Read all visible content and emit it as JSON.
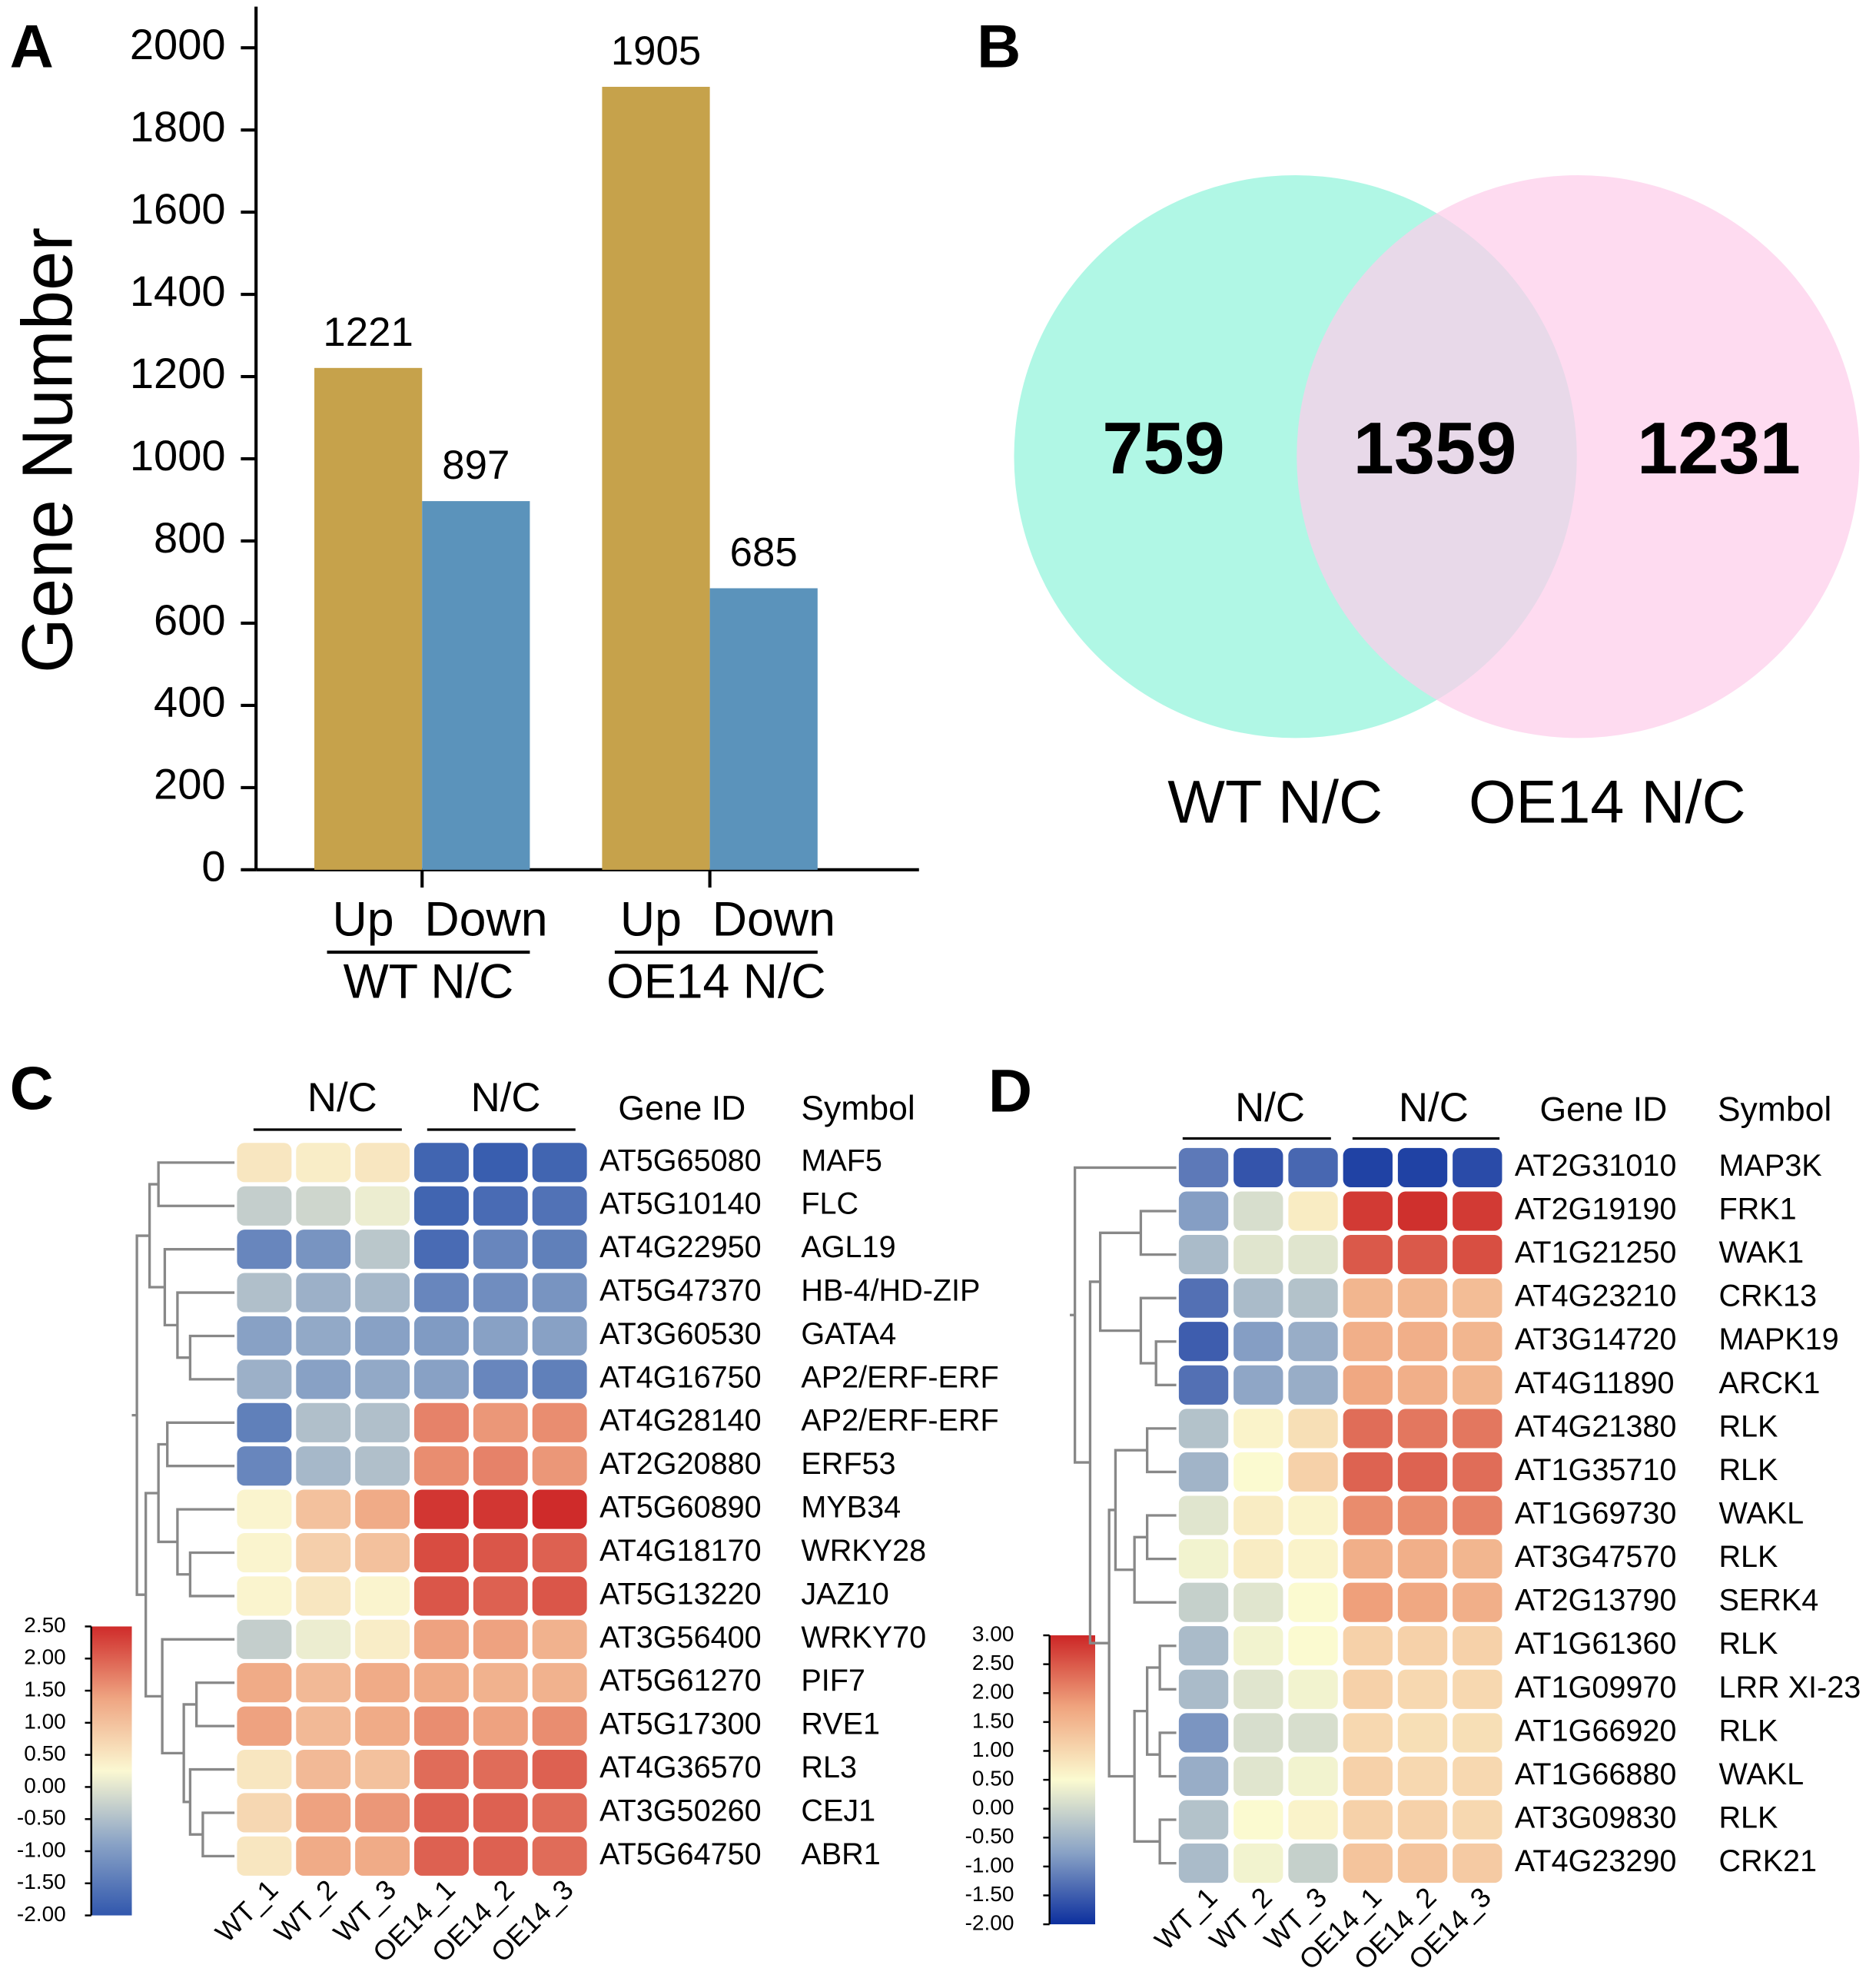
{
  "chart_data": [
    {
      "type": "bar",
      "panel": "A",
      "ylabel": "Gene Number",
      "categories": [
        "WT N/C",
        "OE14 N/C"
      ],
      "series": [
        {
          "name": "Up",
          "color": "#c6a24b",
          "label_color": "#c2714f",
          "values": [
            1221,
            1905
          ]
        },
        {
          "name": "Down",
          "color": "#5b93bb",
          "label_color": "#5b8fbb",
          "values": [
            897,
            685
          ]
        }
      ],
      "ylim": [
        0,
        2100
      ],
      "yticks": [
        0,
        200,
        400,
        600,
        800,
        1000,
        1200,
        1400,
        1600,
        1800,
        2000
      ]
    },
    {
      "type": "venn",
      "panel": "B",
      "sets": [
        "WT N/C",
        "OE14 N/C"
      ],
      "colors": [
        "#b0f7e5",
        "#fdcdea"
      ],
      "values": [
        759,
        1359,
        1231
      ]
    },
    {
      "type": "heatmap",
      "panel": "C",
      "group_labels": [
        "N/C",
        "N/C"
      ],
      "id_header": "Gene ID",
      "symbol_header": "Symbol",
      "columns": [
        "WT_1",
        "WT_2",
        "WT_3",
        "OE14_1",
        "OE14_2",
        "OE14_3"
      ],
      "gene_ids": [
        "AT5G65080",
        "AT5G10140",
        "AT4G22950",
        "AT5G47370",
        "AT3G60530",
        "AT4G16750",
        "AT4G28140",
        "AT2G20880",
        "AT5G60890",
        "AT4G18170",
        "AT5G13220",
        "AT3G56400",
        "AT5G61270",
        "AT5G17300",
        "AT4G36570",
        "AT3G50260",
        "AT5G64750"
      ],
      "symbols": [
        "MAF5",
        "FLC",
        "AGL19",
        "HB-4/HD-ZIP",
        "GATA4",
        "AP2/ERF-ERF",
        "AP2/ERF-ERF",
        "ERF53",
        "MYB34",
        "WRKY28",
        "JAZ10",
        "WRKY70",
        "PIF7",
        "RVE1",
        "RL3",
        "CEJ1",
        "ABR1"
      ],
      "values": [
        [
          0.5,
          0.4,
          0.5,
          -1.8,
          -1.9,
          -1.8
        ],
        [
          -0.3,
          -0.2,
          0.1,
          -1.8,
          -1.7,
          -1.6
        ],
        [
          -1.3,
          -1.1,
          -0.4,
          -1.7,
          -1.3,
          -1.4
        ],
        [
          -0.5,
          -0.7,
          -0.6,
          -1.3,
          -1.2,
          -1.1
        ],
        [
          -0.9,
          -0.8,
          -0.9,
          -1.0,
          -0.9,
          -0.9
        ],
        [
          -0.7,
          -0.9,
          -0.8,
          -0.9,
          -1.3,
          -1.4
        ],
        [
          -1.4,
          -0.5,
          -0.5,
          1.7,
          1.5,
          1.6
        ],
        [
          -1.3,
          -0.6,
          -0.5,
          1.6,
          1.7,
          1.5
        ],
        [
          0.3,
          1.0,
          1.3,
          2.4,
          2.4,
          2.5
        ],
        [
          0.3,
          0.8,
          1.0,
          2.2,
          2.1,
          2.0
        ],
        [
          0.3,
          0.5,
          0.3,
          2.1,
          2.0,
          2.1
        ],
        [
          -0.3,
          0.1,
          0.4,
          1.4,
          1.4,
          1.2
        ],
        [
          1.3,
          1.1,
          1.3,
          1.3,
          1.2,
          1.2
        ],
        [
          1.4,
          1.1,
          1.3,
          1.6,
          1.4,
          1.6
        ],
        [
          0.5,
          1.1,
          1.0,
          1.9,
          1.9,
          2.0
        ],
        [
          0.7,
          1.4,
          1.5,
          2.0,
          2.0,
          1.9
        ],
        [
          0.5,
          1.3,
          1.3,
          2.0,
          2.0,
          1.9
        ]
      ],
      "zlim": [
        -2,
        2.5
      ],
      "colors": [
        "#3157ad",
        "#8aa3c6",
        "#fbf8d2",
        "#efa582",
        "#cf2b2a"
      ],
      "zticks": [
        {
          "value": 2.5,
          "label": "2.50"
        },
        {
          "value": 2,
          "label": "2.00"
        },
        {
          "value": 1.5,
          "label": "1.50"
        },
        {
          "value": 1,
          "label": "1.00"
        },
        {
          "value": 0.5,
          "label": "0.50"
        },
        {
          "value": 0,
          "label": "0.00"
        },
        {
          "value": -0.5,
          "label": "-0.50"
        },
        {
          "value": -1,
          "label": "-1.00"
        },
        {
          "value": -1.5,
          "label": "-1.50"
        },
        {
          "value": -2,
          "label": "-2.00"
        }
      ]
    },
    {
      "type": "heatmap",
      "panel": "D",
      "group_labels": [
        "N/C",
        "N/C"
      ],
      "id_header": "Gene ID",
      "symbol_header": "Symbol",
      "columns": [
        "WT_1",
        "WT_2",
        "WT_3",
        "OE14_1",
        "OE14_2",
        "OE14_3"
      ],
      "gene_ids": [
        "AT2G31010",
        "AT2G19190",
        "AT1G21250",
        "AT4G23210",
        "AT3G14720",
        "AT4G11890",
        "AT4G21380",
        "AT1G35710",
        "AT1G69730",
        "AT3G47570",
        "AT2G13790",
        "AT1G61360",
        "AT1G09970",
        "AT1G66920",
        "AT1G66880",
        "AT3G09830",
        "AT4G23290"
      ],
      "symbols": [
        "MAP3K",
        "FRK1",
        "WAK1",
        "CRK13",
        "MAPK19",
        "ARCK1",
        "RLK",
        "RLK",
        "WAKL",
        "RLK",
        "SERK4",
        "RLK",
        "LRR XI-23",
        "RLK",
        "WAKL",
        "RLK",
        "CRK21"
      ],
      "values": [
        [
          -1.2,
          -1.6,
          -1.4,
          -1.8,
          -1.8,
          -1.7
        ],
        [
          -0.8,
          0.1,
          0.7,
          2.8,
          2.9,
          2.8
        ],
        [
          -0.4,
          0.2,
          0.2,
          2.5,
          2.5,
          2.6
        ],
        [
          -1.3,
          -0.4,
          -0.3,
          1.5,
          1.5,
          1.4
        ],
        [
          -1.5,
          -0.8,
          -0.6,
          1.6,
          1.6,
          1.5
        ],
        [
          -1.3,
          -0.7,
          -0.6,
          1.7,
          1.6,
          1.5
        ],
        [
          -0.3,
          0.6,
          0.9,
          2.3,
          2.2,
          2.2
        ],
        [
          -0.5,
          0.5,
          1.1,
          2.4,
          2.4,
          2.3
        ],
        [
          0.2,
          0.7,
          0.6,
          2.0,
          2.0,
          2.1
        ],
        [
          0.4,
          0.7,
          0.6,
          1.6,
          1.6,
          1.5
        ],
        [
          -0.1,
          0.2,
          0.5,
          1.8,
          1.7,
          1.6
        ],
        [
          -0.4,
          0.4,
          0.5,
          1.1,
          1.1,
          1.1
        ],
        [
          -0.4,
          0.2,
          0.4,
          1.1,
          1.0,
          1.0
        ],
        [
          -0.9,
          0.1,
          0.1,
          1.0,
          0.9,
          0.9
        ],
        [
          -0.6,
          0.2,
          0.4,
          1.1,
          1.0,
          1.0
        ],
        [
          -0.3,
          0.5,
          0.6,
          1.1,
          1.1,
          1.0
        ],
        [
          -0.4,
          0.4,
          -0.1,
          1.3,
          1.3,
          1.2
        ]
      ],
      "zlim": [
        -2,
        3
      ],
      "colors": [
        "#0c2f9e",
        "#8aa3c6",
        "#fbfad0",
        "#f0a57f",
        "#cc2626"
      ],
      "zticks": [
        {
          "value": 3,
          "label": "3.00"
        },
        {
          "value": 2.5,
          "label": "2.50"
        },
        {
          "value": 2,
          "label": "2.00"
        },
        {
          "value": 1.5,
          "label": "1.50"
        },
        {
          "value": 1,
          "label": "1.00"
        },
        {
          "value": 0.5,
          "label": "0.50"
        },
        {
          "value": 0,
          "label": "0.00"
        },
        {
          "value": -0.5,
          "label": "-0.50"
        },
        {
          "value": -1,
          "label": "-1.00"
        },
        {
          "value": -1.5,
          "label": "-1.50"
        },
        {
          "value": -2,
          "label": "-2.00"
        }
      ]
    }
  ]
}
